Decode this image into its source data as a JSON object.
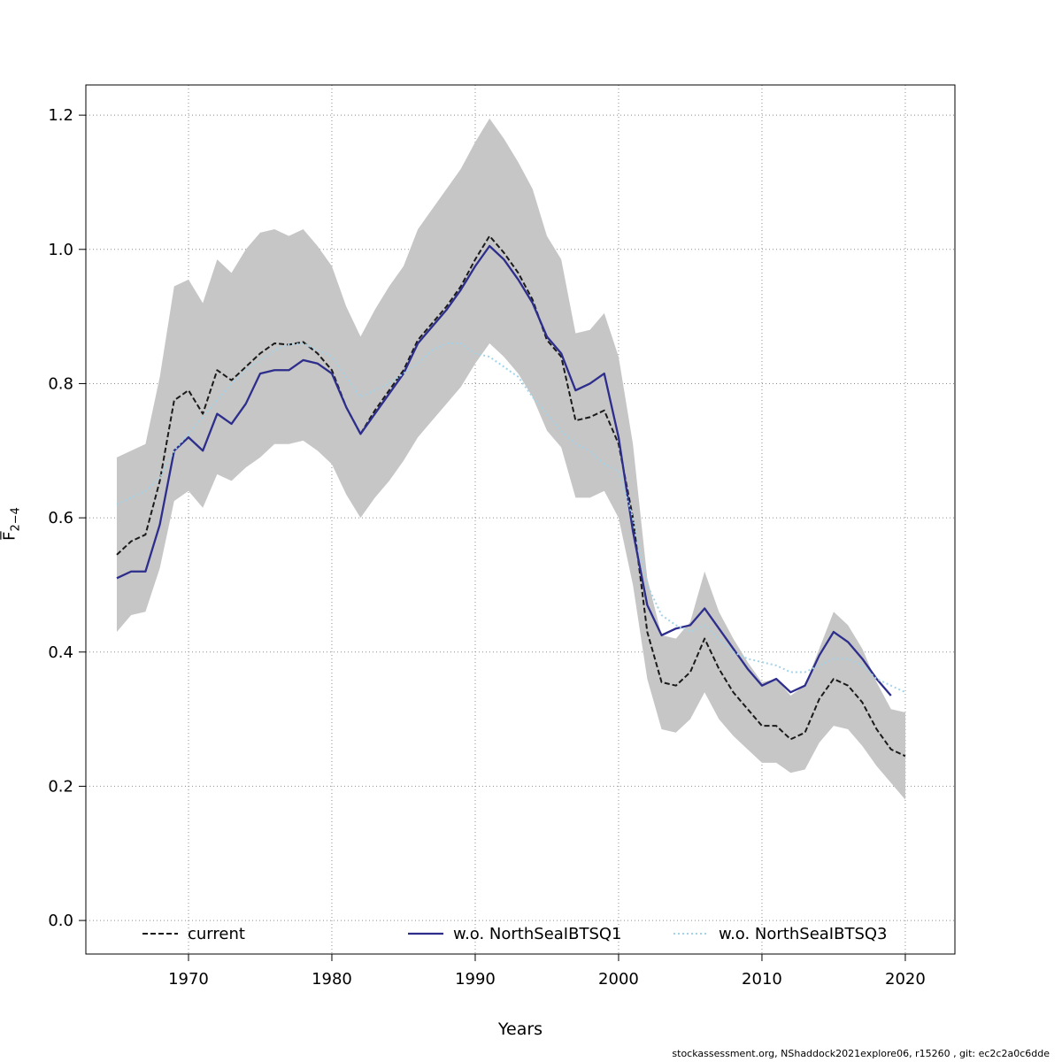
{
  "figure": {
    "footer": "stockassessment.org, NShaddock2021explore06, r15260 , git: ec2c2a0c6dde"
  },
  "chart_data": {
    "type": "line",
    "title": "",
    "xlabel": "Years",
    "ylabel_base": "F̅",
    "ylabel_subscript": "2−4",
    "xlim": [
      1962.84,
      2023.46
    ],
    "ylim": [
      -0.05,
      1.245
    ],
    "grid": "dotted",
    "legend_position": "bottom",
    "x_ticks": [
      {
        "v": 1970,
        "label": "1970"
      },
      {
        "v": 1980,
        "label": "1980"
      },
      {
        "v": 1990,
        "label": "1990"
      },
      {
        "v": 2000,
        "label": "2000"
      },
      {
        "v": 2010,
        "label": "2010"
      },
      {
        "v": 2020,
        "label": "2020"
      }
    ],
    "y_ticks": [
      {
        "v": 0.0,
        "label": "0.0"
      },
      {
        "v": 0.2,
        "label": "0.2"
      },
      {
        "v": 0.4,
        "label": "0.4"
      },
      {
        "v": 0.6,
        "label": "0.6"
      },
      {
        "v": 0.8,
        "label": "0.8"
      },
      {
        "v": 1.0,
        "label": "1.0"
      },
      {
        "v": 1.2,
        "label": "1.2"
      }
    ],
    "x": [
      1965,
      1966,
      1967,
      1968,
      1969,
      1970,
      1971,
      1972,
      1973,
      1974,
      1975,
      1976,
      1977,
      1978,
      1979,
      1980,
      1981,
      1982,
      1983,
      1984,
      1985,
      1986,
      1987,
      1988,
      1989,
      1990,
      1991,
      1992,
      1993,
      1994,
      1995,
      1996,
      1997,
      1998,
      1999,
      2000,
      2001,
      2002,
      2003,
      2004,
      2005,
      2006,
      2007,
      2008,
      2009,
      2010,
      2011,
      2012,
      2013,
      2014,
      2015,
      2016,
      2017,
      2018,
      2019,
      2020
    ],
    "band": {
      "name": "current-confidence-band",
      "color": "#c6c6c6",
      "low": [
        0.43,
        0.455,
        0.46,
        0.525,
        0.625,
        0.64,
        0.615,
        0.665,
        0.655,
        0.675,
        0.69,
        0.71,
        0.71,
        0.715,
        0.7,
        0.68,
        0.635,
        0.6,
        0.63,
        0.655,
        0.685,
        0.72,
        0.745,
        0.77,
        0.795,
        0.83,
        0.86,
        0.84,
        0.815,
        0.78,
        0.73,
        0.705,
        0.63,
        0.63,
        0.64,
        0.6,
        0.5,
        0.36,
        0.285,
        0.28,
        0.3,
        0.34,
        0.3,
        0.275,
        0.255,
        0.235,
        0.235,
        0.22,
        0.225,
        0.265,
        0.29,
        0.285,
        0.26,
        0.23,
        0.205,
        0.18
      ],
      "high": [
        0.69,
        0.7,
        0.71,
        0.81,
        0.945,
        0.955,
        0.92,
        0.985,
        0.965,
        1.0,
        1.025,
        1.03,
        1.02,
        1.03,
        1.005,
        0.975,
        0.915,
        0.87,
        0.91,
        0.945,
        0.975,
        1.03,
        1.06,
        1.09,
        1.12,
        1.16,
        1.195,
        1.165,
        1.13,
        1.09,
        1.02,
        0.985,
        0.875,
        0.88,
        0.905,
        0.84,
        0.71,
        0.51,
        0.425,
        0.42,
        0.445,
        0.52,
        0.46,
        0.42,
        0.385,
        0.355,
        0.36,
        0.335,
        0.35,
        0.405,
        0.46,
        0.44,
        0.405,
        0.355,
        0.315,
        0.31
      ]
    },
    "series": [
      {
        "name": "current",
        "color": "#1a1a1a",
        "width": 2,
        "dash": "6 3",
        "values": [
          0.545,
          0.565,
          0.575,
          0.655,
          0.775,
          0.79,
          0.755,
          0.82,
          0.805,
          0.825,
          0.845,
          0.86,
          0.858,
          0.862,
          0.845,
          0.82,
          0.765,
          0.725,
          0.76,
          0.79,
          0.82,
          0.865,
          0.89,
          0.915,
          0.945,
          0.985,
          1.02,
          0.995,
          0.965,
          0.925,
          0.865,
          0.84,
          0.745,
          0.75,
          0.76,
          0.71,
          0.6,
          0.43,
          0.355,
          0.35,
          0.37,
          0.42,
          0.375,
          0.34,
          0.315,
          0.29,
          0.29,
          0.27,
          0.28,
          0.33,
          0.36,
          0.35,
          0.325,
          0.285,
          0.255,
          0.245
        ]
      },
      {
        "name": "w.o. NorthSeaIBTSQ1",
        "color": "#2d2d8c",
        "width": 2.3,
        "dash": "",
        "values": [
          0.51,
          0.52,
          0.52,
          0.59,
          0.7,
          0.72,
          0.7,
          0.755,
          0.74,
          0.77,
          0.815,
          0.82,
          0.82,
          0.835,
          0.83,
          0.815,
          0.765,
          0.725,
          0.755,
          0.785,
          0.815,
          0.86,
          0.885,
          0.91,
          0.94,
          0.975,
          1.005,
          0.985,
          0.955,
          0.92,
          0.87,
          0.845,
          0.79,
          0.8,
          0.815,
          0.72,
          0.58,
          0.47,
          0.425,
          0.435,
          0.44,
          0.465,
          0.435,
          0.405,
          0.375,
          0.35,
          0.36,
          0.34,
          0.35,
          0.395,
          0.43,
          0.415,
          0.39,
          0.36,
          0.335,
          null
        ]
      },
      {
        "name": "w.o. NorthSeaIBTSQ3",
        "color": "#a3d3e8",
        "width": 2,
        "dash": "2 3",
        "values": [
          0.62,
          0.63,
          0.64,
          0.66,
          0.7,
          0.725,
          0.75,
          0.775,
          0.8,
          0.82,
          0.835,
          0.85,
          0.858,
          0.86,
          0.85,
          0.84,
          0.81,
          0.78,
          0.79,
          0.8,
          0.815,
          0.83,
          0.85,
          0.86,
          0.86,
          0.845,
          0.84,
          0.825,
          0.81,
          0.78,
          0.755,
          0.73,
          0.71,
          0.7,
          0.68,
          0.67,
          0.6,
          0.5,
          0.455,
          0.44,
          0.43,
          0.44,
          0.42,
          0.4,
          0.39,
          0.385,
          0.38,
          0.37,
          0.37,
          0.38,
          0.39,
          0.39,
          0.38,
          0.36,
          0.35,
          0.34
        ]
      }
    ]
  }
}
